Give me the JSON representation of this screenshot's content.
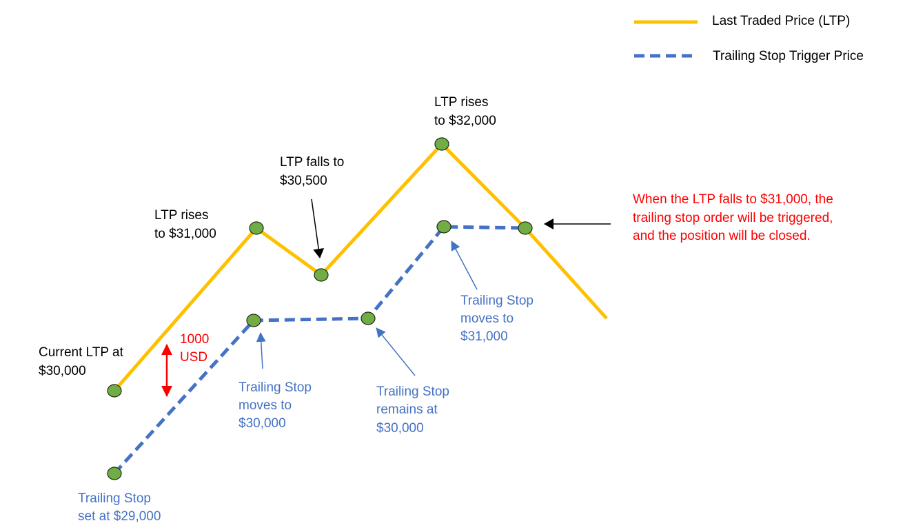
{
  "legend": {
    "ltp": "Last Traded Price (LTP)",
    "stop": "Trailing  Stop  Trigger  Price"
  },
  "colors": {
    "ltp": "#FFC000",
    "stop": "#4472C4",
    "dot": "#70AD47",
    "alert": "#FF0000",
    "text": "#000000"
  },
  "labels": {
    "current_1": "Current LTP at",
    "current_2": "$30,000",
    "rise1_1": "LTP rises",
    "rise1_2": "to $31,000",
    "fall_1": "LTP falls to",
    "fall_2": "$30,500",
    "rise2_1": "LTP rises",
    "rise2_2": "to $32,000",
    "gap_1": "1000",
    "gap_2": "USD",
    "ts_set_1": "Trailing Stop",
    "ts_set_2": "set at $29,000",
    "ts_move1_1": "Trailing Stop",
    "ts_move1_2": "moves to",
    "ts_move1_3": "$30,000",
    "ts_remain_1": "Trailing Stop",
    "ts_remain_2": "remains at",
    "ts_remain_3": "$30,000",
    "ts_move2_1": "Trailing Stop",
    "ts_move2_2": "moves to",
    "ts_move2_3": "$31,000",
    "trigger_1": "When the LTP falls to $31,000, the",
    "trigger_2": "trailing stop order will be triggered,",
    "trigger_3": "and the position will be closed."
  }
}
